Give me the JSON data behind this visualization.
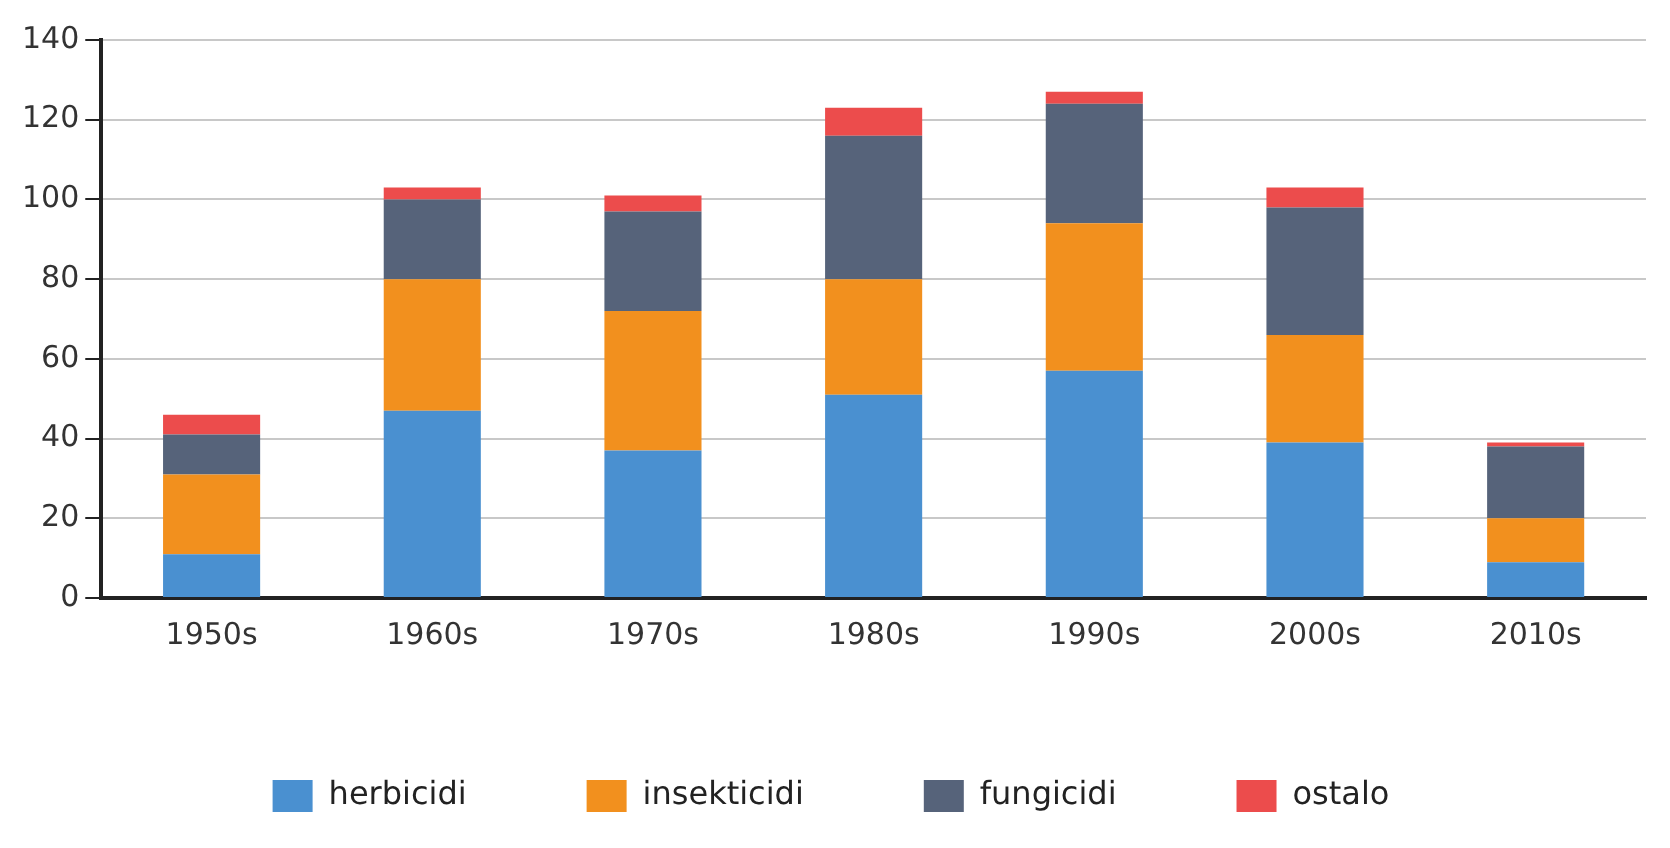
{
  "chart_data": {
    "type": "bar",
    "stacked": true,
    "categories": [
      "1950s",
      "1960s",
      "1970s",
      "1980s",
      "1990s",
      "2000s",
      "2010s"
    ],
    "series": [
      {
        "name": "herbicidi",
        "color": "#4a90d0",
        "values": [
          11,
          47,
          37,
          51,
          57,
          39,
          9
        ]
      },
      {
        "name": "insekticidi",
        "color": "#f2901e",
        "values": [
          20,
          33,
          35,
          29,
          37,
          27,
          11
        ]
      },
      {
        "name": "fungicidi",
        "color": "#56637a",
        "values": [
          10,
          20,
          25,
          36,
          30,
          32,
          18
        ]
      },
      {
        "name": "ostalo",
        "color": "#ec4c4c",
        "values": [
          5,
          3,
          4,
          7,
          3,
          5,
          1
        ]
      }
    ],
    "ylim": [
      0,
      140
    ],
    "yticks": [
      0,
      20,
      40,
      60,
      80,
      100,
      120,
      140
    ],
    "grid": "y",
    "legend": "bottom"
  }
}
